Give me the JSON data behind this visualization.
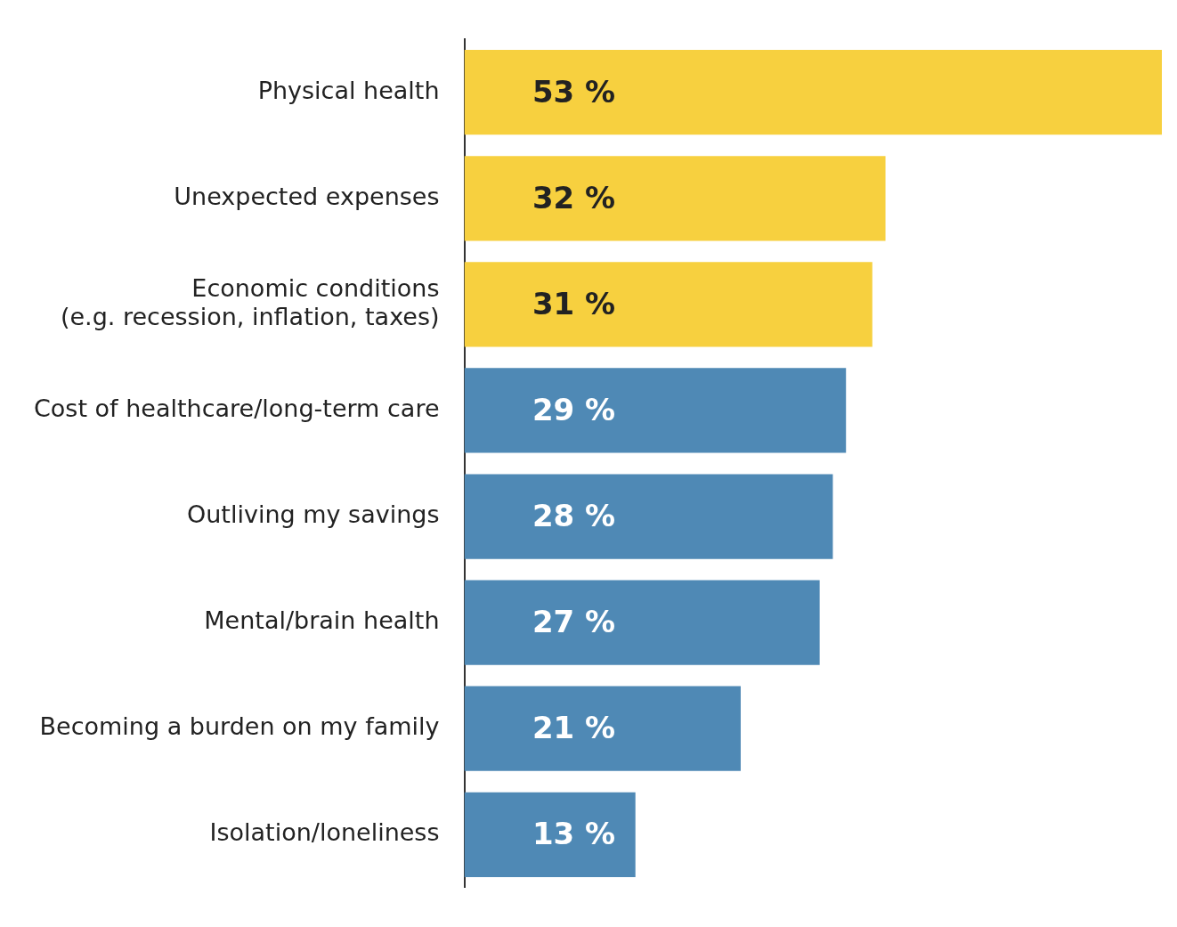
{
  "chart_data": {
    "type": "bar",
    "orientation": "horizontal",
    "categories": [
      "Physical health",
      "Unexpected expenses",
      "Economic conditions\n(e.g. recession, inflation, taxes)",
      "Cost of healthcare/long-term care",
      "Outliving my savings",
      "Mental/brain health",
      "Becoming a burden on my family",
      "Isolation/loneliness"
    ],
    "values": [
      53,
      32,
      31,
      29,
      28,
      27,
      21,
      13
    ],
    "colors": [
      "#f7d03f",
      "#f7d03f",
      "#f7d03f",
      "#4f89b5",
      "#4f89b5",
      "#4f89b5",
      "#4f89b5",
      "#4f89b5"
    ],
    "value_labels": [
      "53 %",
      "32 %",
      "31 %",
      "29 %",
      "28 %",
      "27 %",
      "21 %",
      "13 %"
    ],
    "legend": false
  }
}
